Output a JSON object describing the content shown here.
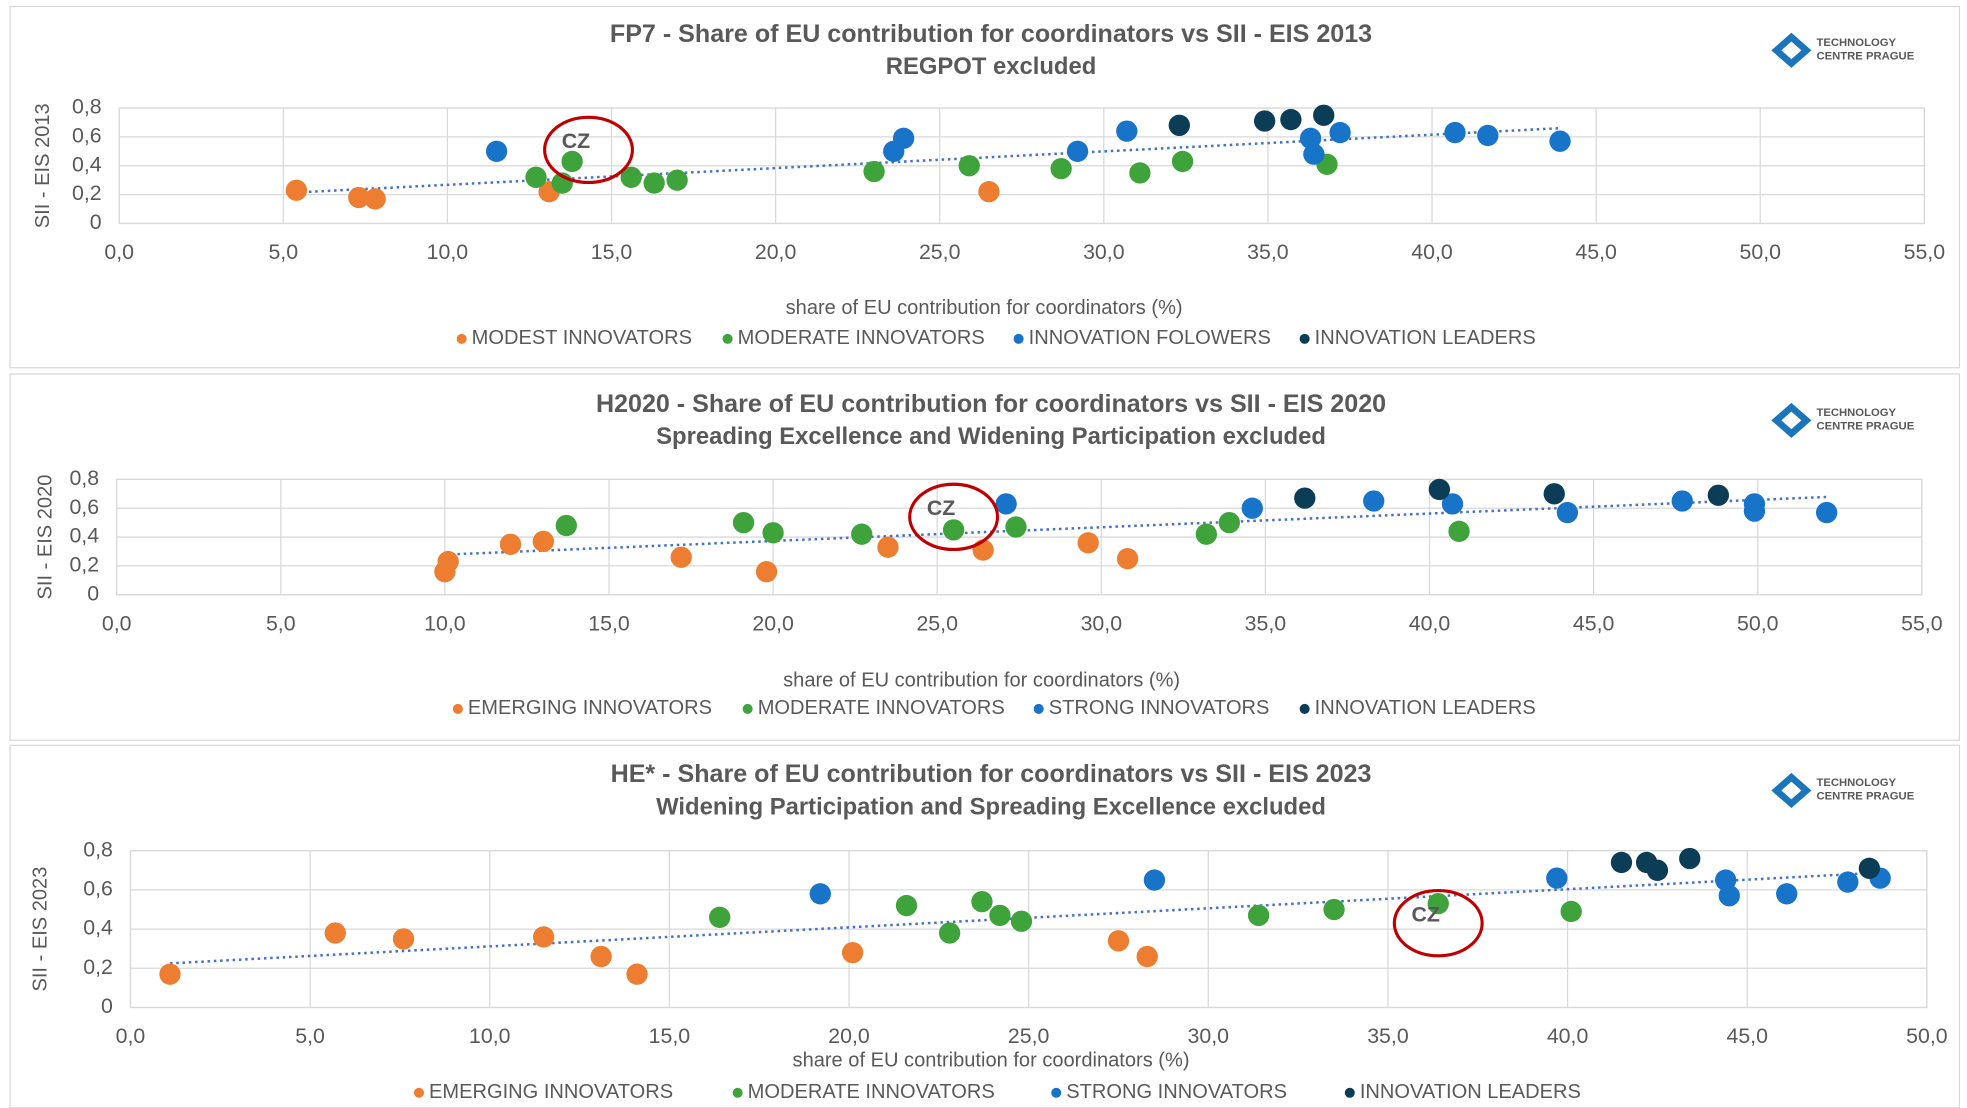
{
  "logo": [
    "TECHNOLOGY",
    "CENTRE PRAGUE"
  ],
  "chart_data": [
    {
      "type": "scatter",
      "title": "FP7 - Share of EU contribution for coordinators vs SII - EIS 2013",
      "subtitle": "REGPOT excluded",
      "xlabel": "share of EU contribution for coordinators (%)",
      "ylabel": "SII - EIS 2013",
      "xlim": [
        0,
        55
      ],
      "ylim": [
        0,
        0.8
      ],
      "xticks": [
        {
          "value": 0,
          "label": "0,0"
        },
        {
          "value": 5,
          "label": "5,0"
        },
        {
          "value": 10,
          "label": "10,0"
        },
        {
          "value": 15,
          "label": "15,0"
        },
        {
          "value": 20,
          "label": "20,0"
        },
        {
          "value": 25,
          "label": "25,0"
        },
        {
          "value": 30,
          "label": "30,0"
        },
        {
          "value": 35,
          "label": "35,0"
        },
        {
          "value": 40,
          "label": "40,0"
        },
        {
          "value": 45,
          "label": "45,0"
        },
        {
          "value": 50,
          "label": "50,0"
        },
        {
          "value": 55,
          "label": "55,0"
        }
      ],
      "yticks": [
        0,
        {
          "value": 0.2,
          "label": "0,2"
        },
        {
          "value": 0.4,
          "label": "0,4"
        },
        {
          "value": 0.6,
          "label": "0,6"
        },
        {
          "value": 0.8,
          "label": "0,8"
        }
      ],
      "grid": true,
      "trendline": true,
      "trendline_color": "#4472c4",
      "annotations": [
        {
          "text": "CZ",
          "x": 14.3,
          "y": 0.51
        }
      ],
      "series": [
        {
          "name": "MODEST INNOVATORS",
          "color": "#ed7d31",
          "x": [
            5.4,
            7.3,
            7.8,
            13.1,
            26.5
          ],
          "y": [
            0.23,
            0.18,
            0.17,
            0.22,
            0.22
          ]
        },
        {
          "name": "MODERATE INNOVATORS",
          "color": "#3fa33b",
          "x": [
            12.7,
            13.5,
            13.8,
            15.6,
            16.3,
            17.0,
            23.0,
            25.9,
            28.7,
            31.1,
            32.4,
            36.8
          ],
          "y": [
            0.32,
            0.28,
            0.43,
            0.32,
            0.28,
            0.3,
            0.36,
            0.4,
            0.38,
            0.35,
            0.43,
            0.41
          ]
        },
        {
          "name": "INNOVATION FOLOWERS",
          "color": "#1874c8",
          "x": [
            11.5,
            23.6,
            23.9,
            29.2,
            30.7,
            36.3,
            36.4,
            37.2,
            40.7,
            41.7,
            43.9
          ],
          "y": [
            0.5,
            0.5,
            0.59,
            0.5,
            0.64,
            0.59,
            0.48,
            0.63,
            0.63,
            0.61,
            0.57
          ]
        },
        {
          "name": "INNOVATION LEADERS",
          "color": "#0b3d56",
          "x": [
            32.3,
            34.9,
            35.7,
            36.7
          ],
          "y": [
            0.68,
            0.71,
            0.72,
            0.75
          ]
        }
      ]
    },
    {
      "type": "scatter",
      "title": "H2020 - Share of EU contribution for coordinators vs SII - EIS 2020",
      "subtitle": "Spreading Excellence and Widening Participation excluded",
      "xlabel": "share of EU contribution for coordinators (%)",
      "ylabel": "SII - EIS 2020",
      "xlim": [
        0,
        55
      ],
      "ylim": [
        0,
        0.8
      ],
      "xticks": [
        {
          "value": 0,
          "label": "0,0"
        },
        {
          "value": 5,
          "label": "5,0"
        },
        {
          "value": 10,
          "label": "10,0"
        },
        {
          "value": 15,
          "label": "15,0"
        },
        {
          "value": 20,
          "label": "20,0"
        },
        {
          "value": 25,
          "label": "25,0"
        },
        {
          "value": 30,
          "label": "30,0"
        },
        {
          "value": 35,
          "label": "35,0"
        },
        {
          "value": 40,
          "label": "40,0"
        },
        {
          "value": 45,
          "label": "45,0"
        },
        {
          "value": 50,
          "label": "50,0"
        },
        {
          "value": 55,
          "label": "55,0"
        }
      ],
      "yticks": [
        0,
        {
          "value": 0.2,
          "label": "0,2"
        },
        {
          "value": 0.4,
          "label": "0,4"
        },
        {
          "value": 0.6,
          "label": "0,6"
        },
        {
          "value": 0.8,
          "label": "0,8"
        }
      ],
      "grid": true,
      "trendline": true,
      "trendline_color": "#4472c4",
      "annotations": [
        {
          "text": "CZ",
          "x": 25.5,
          "y": 0.54
        }
      ],
      "series": [
        {
          "name": "EMERGING INNOVATORS",
          "color": "#ed7d31",
          "x": [
            10.1,
            10.0,
            12.0,
            13.0,
            17.2,
            19.8,
            23.5,
            26.4,
            29.6,
            30.8
          ],
          "y": [
            0.23,
            0.16,
            0.35,
            0.37,
            0.26,
            0.16,
            0.33,
            0.31,
            0.36,
            0.25
          ]
        },
        {
          "name": "MODERATE INNOVATORS",
          "color": "#3fa33b",
          "x": [
            13.7,
            19.1,
            20.0,
            22.7,
            25.5,
            27.4,
            33.2,
            33.9,
            40.9
          ],
          "y": [
            0.48,
            0.5,
            0.43,
            0.42,
            0.45,
            0.47,
            0.42,
            0.5,
            0.44
          ]
        },
        {
          "name": "STRONG INNOVATORS",
          "color": "#1874c8",
          "x": [
            27.1,
            34.6,
            38.3,
            40.7,
            44.2,
            47.7,
            49.9,
            49.9,
            52.1
          ],
          "y": [
            0.63,
            0.6,
            0.65,
            0.63,
            0.57,
            0.65,
            0.63,
            0.58,
            0.57
          ]
        },
        {
          "name": "INNOVATION LEADERS",
          "color": "#0b3d56",
          "x": [
            36.2,
            40.3,
            43.8,
            48.8
          ],
          "y": [
            0.67,
            0.73,
            0.7,
            0.69
          ]
        }
      ]
    },
    {
      "type": "scatter",
      "title": "HE* - Share of EU contribution for coordinators vs SII - EIS 2023",
      "subtitle": "Widening Participation and Spreading Excellence excluded",
      "xlabel": "share of EU contribution for coordinators (%)",
      "ylabel": "SII - EIS 2023",
      "xlim": [
        0,
        50
      ],
      "ylim": [
        0,
        0.8
      ],
      "xticks": [
        {
          "value": 0,
          "label": "0,0"
        },
        {
          "value": 5,
          "label": "5,0"
        },
        {
          "value": 10,
          "label": "10,0"
        },
        {
          "value": 15,
          "label": "15,0"
        },
        {
          "value": 20,
          "label": "20,0"
        },
        {
          "value": 25,
          "label": "25,0"
        },
        {
          "value": 30,
          "label": "30,0"
        },
        {
          "value": 35,
          "label": "35,0"
        },
        {
          "value": 40,
          "label": "40,0"
        },
        {
          "value": 45,
          "label": "45,0"
        },
        {
          "value": 50,
          "label": "50,0"
        }
      ],
      "yticks": [
        0,
        {
          "value": 0.2,
          "label": "0,2"
        },
        {
          "value": 0.4,
          "label": "0,4"
        },
        {
          "value": 0.6,
          "label": "0,6"
        },
        {
          "value": 0.8,
          "label": "0,8"
        }
      ],
      "grid": true,
      "trendline": true,
      "trendline_color": "#4472c4",
      "annotations": [
        {
          "text": "CZ",
          "x": 36.4,
          "y": 0.43
        }
      ],
      "series": [
        {
          "name": "EMERGING INNOVATORS",
          "color": "#ed7d31",
          "x": [
            1.1,
            5.7,
            7.6,
            11.5,
            13.1,
            14.1,
            20.1,
            27.5,
            28.3
          ],
          "y": [
            0.17,
            0.38,
            0.35,
            0.36,
            0.26,
            0.17,
            0.28,
            0.34,
            0.26
          ]
        },
        {
          "name": "MODERATE INNOVATORS",
          "color": "#3fa33b",
          "x": [
            16.4,
            21.6,
            22.8,
            23.7,
            24.2,
            24.8,
            31.4,
            33.5,
            36.4,
            40.1
          ],
          "y": [
            0.46,
            0.52,
            0.38,
            0.54,
            0.47,
            0.44,
            0.47,
            0.5,
            0.53,
            0.49
          ]
        },
        {
          "name": "STRONG INNOVATORS",
          "color": "#1874c8",
          "x": [
            19.2,
            28.5,
            39.7,
            44.4,
            44.5,
            46.1,
            47.8,
            48.7
          ],
          "y": [
            0.58,
            0.65,
            0.66,
            0.65,
            0.57,
            0.58,
            0.64,
            0.66
          ]
        },
        {
          "name": "INNOVATION LEADERS",
          "color": "#0b3d56",
          "x": [
            41.5,
            42.2,
            42.5,
            43.4,
            48.4
          ],
          "y": [
            0.74,
            0.74,
            0.7,
            0.76,
            0.71
          ]
        }
      ]
    }
  ]
}
